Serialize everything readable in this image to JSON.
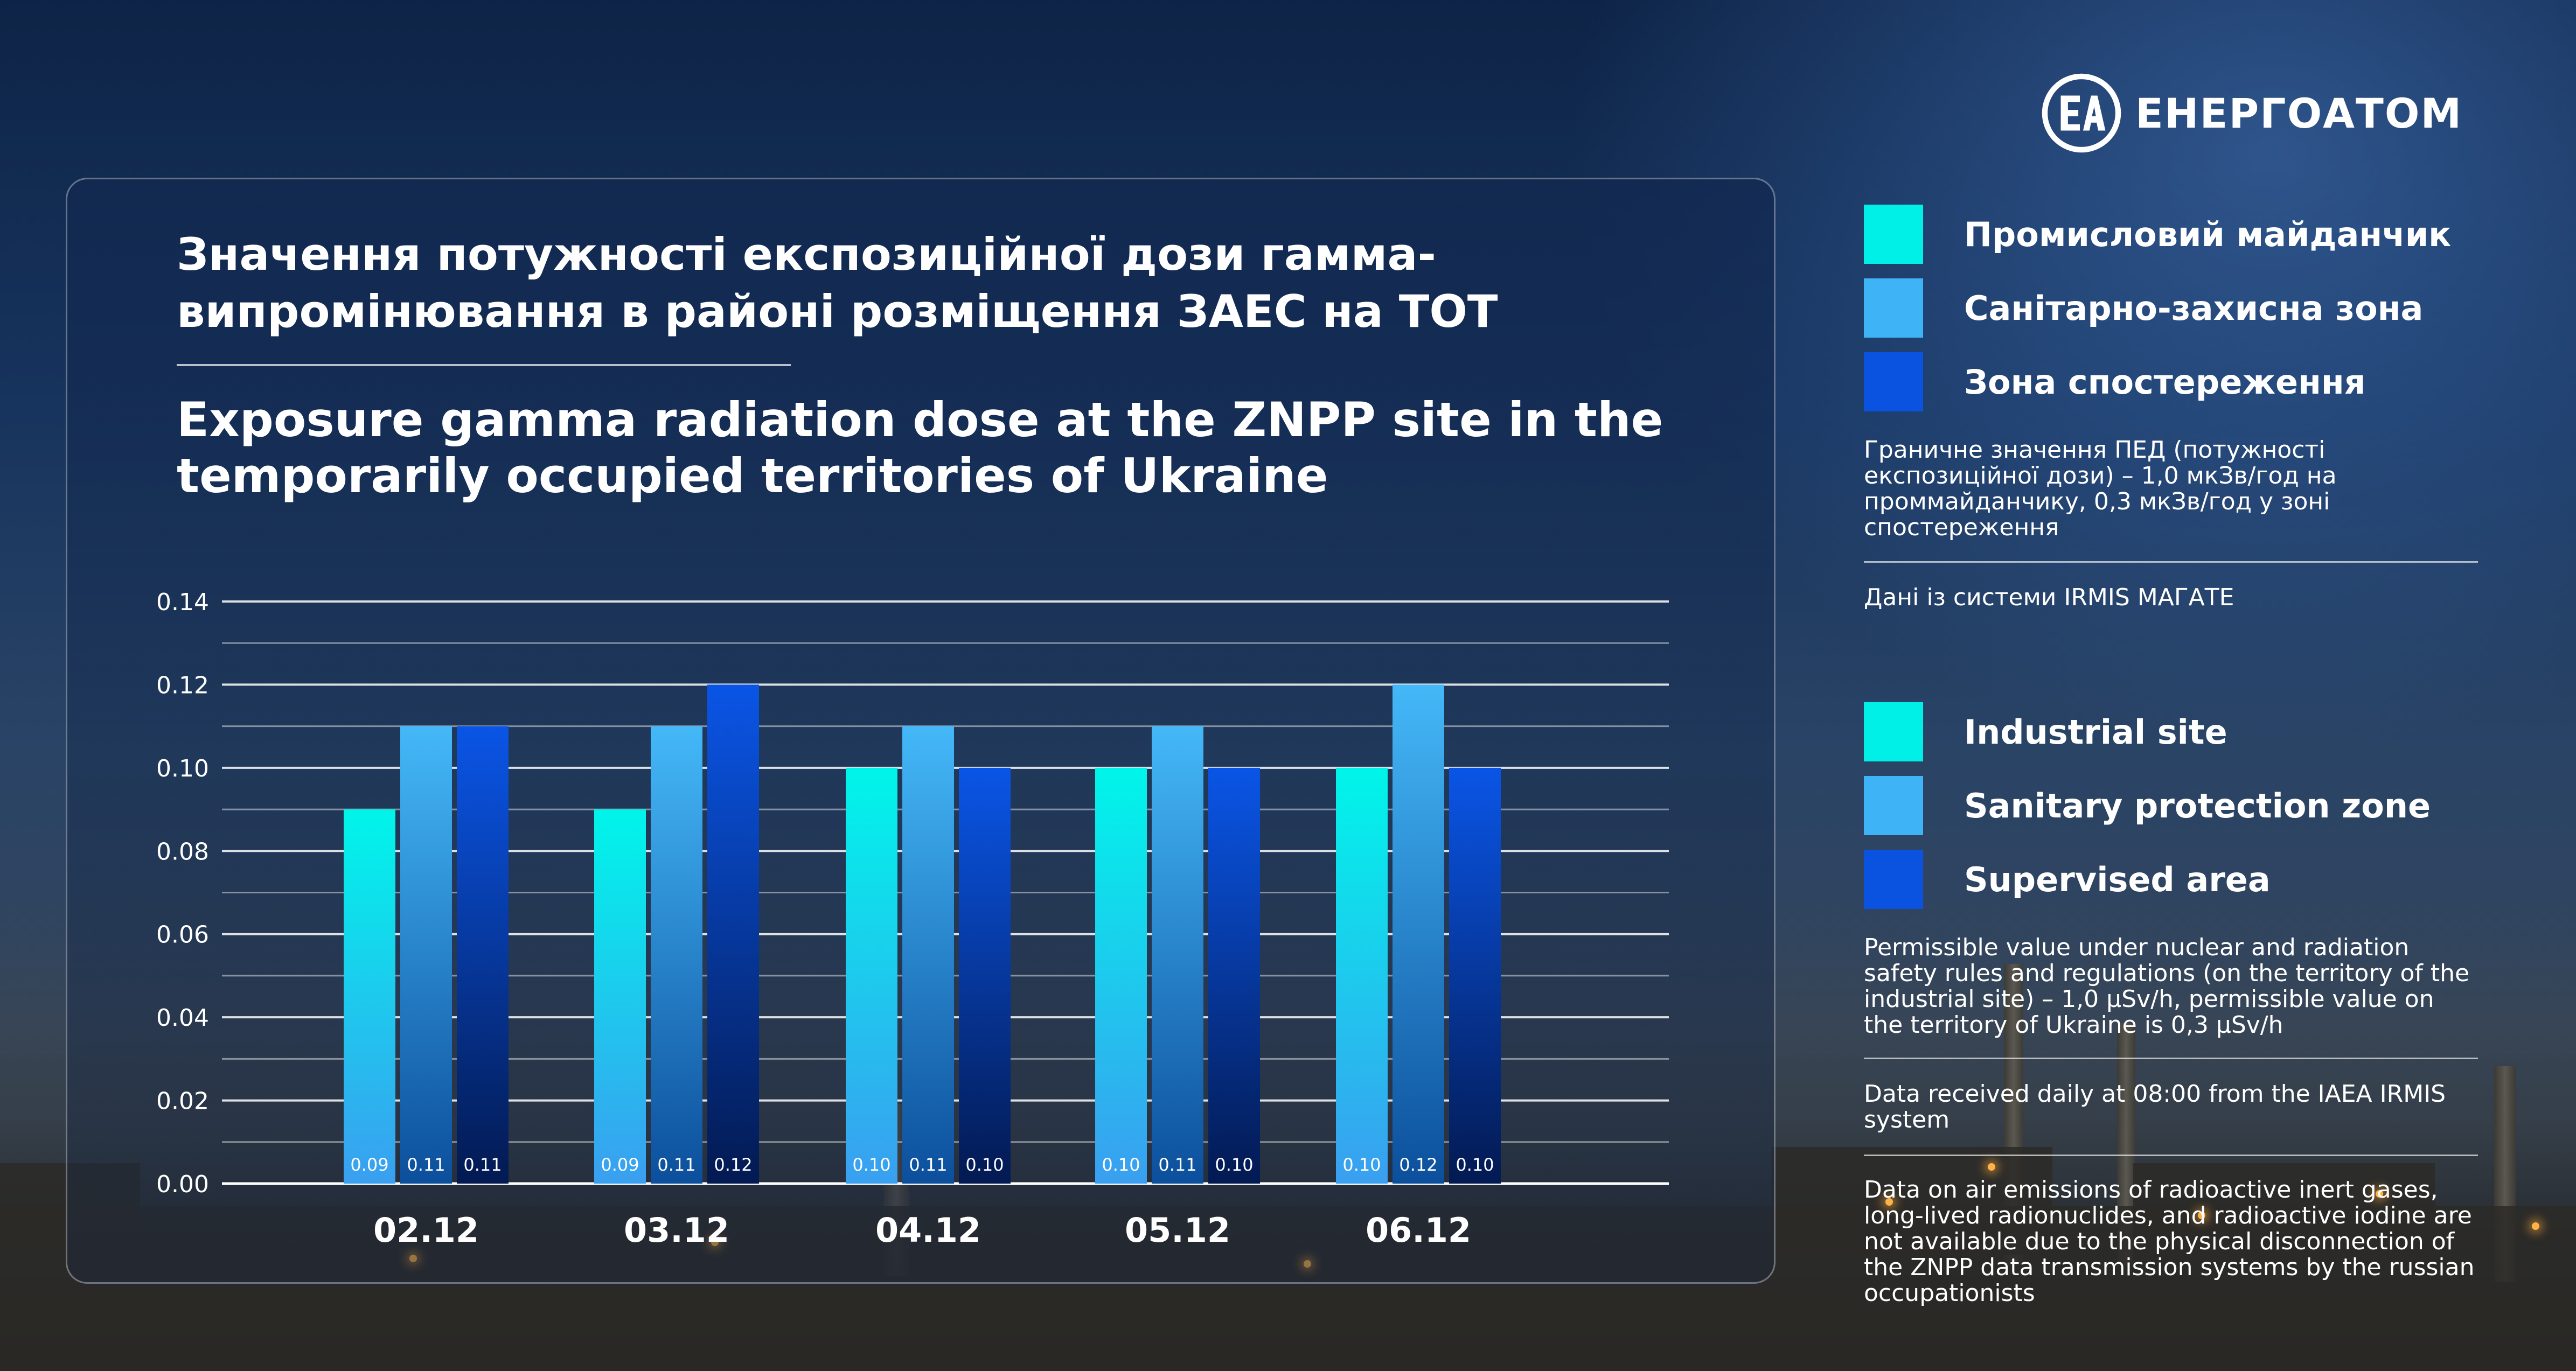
{
  "brand": {
    "name": "ЕНЕРГОАТОМ"
  },
  "title_ua": [
    "Значення потужності експозиційної дози гамма-",
    "випромінювання в районі розміщення ЗАЕС на ТОТ"
  ],
  "title_en": [
    "Exposure gamma radiation dose at the ZNPP site in the",
    "temporarily occupied territories of Ukraine"
  ],
  "legend_ua": [
    {
      "label": "Промисловий майданчик",
      "color": "#00f0e8"
    },
    {
      "label": "Санітарно-захисна зона",
      "color": "#3eb4f6"
    },
    {
      "label": "Зона спостереження",
      "color": "#0a52e0"
    }
  ],
  "notes_ua": {
    "limit": "Граничне значення ПЕД (потужності експозиційної дози) – 1,0 мкЗв/год на проммайданчику, 0,3 мкЗв/год у зоні спостереження",
    "source": "Дані із системи IRMIS МАГАТЕ"
  },
  "legend_en": [
    {
      "label": "Industrial site",
      "color": "#00f0e8"
    },
    {
      "label": "Sanitary protection zone",
      "color": "#3eb4f6"
    },
    {
      "label": "Supervised area",
      "color": "#0a52e0"
    }
  ],
  "notes_en": {
    "limit": "Permissible value under nuclear and radiation safety rules and regulations (on the territory of the industrial site) – 1,0 µSv/h, permissible value on the territory of Ukraine is 0,3 µSv/h",
    "source": "Data received daily at 08:00 from the IAEA IRMIS system",
    "emissions": "Data on air emissions of radioactive inert gases, long-lived radionuclides, and radioactive iodine are not available due to the physical disconnection of the ZNPP data transmission systems by the russian occupationists"
  },
  "chart_data": {
    "type": "bar",
    "categories": [
      "02.12",
      "03.12",
      "04.12",
      "05.12",
      "06.12"
    ],
    "series": [
      {
        "name": "Industrial site",
        "values": [
          0.09,
          0.09,
          0.1,
          0.1,
          0.1
        ],
        "labels": [
          "0.09",
          "0.09",
          "0.10",
          "0.10",
          "0.10"
        ],
        "color_top": "#00f5ea",
        "color_bottom": "#3a9ff0"
      },
      {
        "name": "Sanitary protection zone",
        "values": [
          0.11,
          0.11,
          0.11,
          0.11,
          0.12
        ],
        "labels": [
          "0.11",
          "0.11",
          "0.11",
          "0.11",
          "0.12"
        ],
        "color_top": "#44b8f8",
        "color_bottom": "#0c4f9c"
      },
      {
        "name": "Supervised area",
        "values": [
          0.11,
          0.12,
          0.1,
          0.1,
          0.1
        ],
        "labels": [
          "0.11",
          "0.12",
          "0.10",
          "0.10",
          "0.10"
        ],
        "color_top": "#0a55e6",
        "color_bottom": "#031a52"
      }
    ],
    "yticks": [
      "0.00",
      "0.02",
      "0.04",
      "0.06",
      "0.08",
      "0.10",
      "0.12",
      "0.14"
    ],
    "ylim": [
      0,
      0.14
    ],
    "grid": true,
    "legend": "right"
  }
}
